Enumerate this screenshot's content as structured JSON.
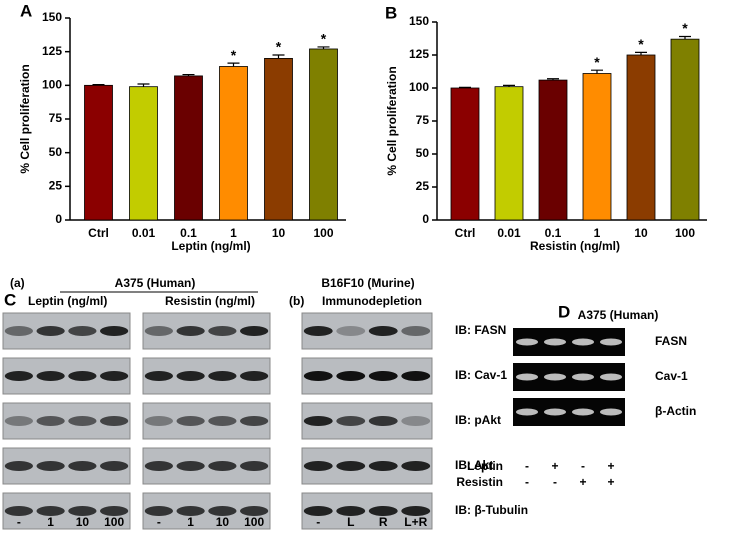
{
  "chart_data": [
    {
      "type": "bar",
      "panel_label": "A",
      "categories": [
        "Ctrl",
        "0.01",
        "0.1",
        "1",
        "10",
        "100"
      ],
      "values": [
        100,
        99,
        107,
        114,
        120,
        127
      ],
      "errors": [
        0.5,
        2,
        1,
        2.5,
        2.5,
        1.5
      ],
      "colors": [
        "#8b0000",
        "#c2cc00",
        "#6a0000",
        "#ff8c00",
        "#8b3c00",
        "#7f8000"
      ],
      "ylim": [
        0,
        150
      ],
      "yticks": [
        0,
        25,
        50,
        75,
        100,
        125,
        150
      ],
      "y_label": "% Cell proliferation",
      "x_label": "Leptin (ng/ml)",
      "annotations": [
        {
          "category": "1",
          "label": "*"
        },
        {
          "category": "10",
          "label": "*"
        },
        {
          "category": "100",
          "label": "*"
        }
      ]
    },
    {
      "type": "bar",
      "panel_label": "B",
      "categories": [
        "Ctrl",
        "0.01",
        "0.1",
        "1",
        "10",
        "100"
      ],
      "values": [
        100,
        101,
        106,
        111,
        125,
        137
      ],
      "errors": [
        0.5,
        1,
        1,
        2.5,
        2,
        2
      ],
      "colors": [
        "#8b0000",
        "#c2cc00",
        "#6a0000",
        "#ff8c00",
        "#8b3c00",
        "#7f8000"
      ],
      "ylim": [
        0,
        150
      ],
      "yticks": [
        0,
        25,
        50,
        75,
        100,
        125,
        150
      ],
      "y_label": "% Cell proliferation",
      "x_label": "Resistin (ng/ml)",
      "annotations": [
        {
          "category": "1",
          "label": "*"
        },
        {
          "category": "10",
          "label": "*"
        },
        {
          "category": "100",
          "label": "*"
        }
      ]
    }
  ],
  "panel_c": {
    "label": "C",
    "group_a": "(a)",
    "cell_line_a": "A375 (Human)",
    "leptin_header": "Leptin (ng/ml)",
    "resistin_header": "Resistin (ng/ml)",
    "group_b": "(b)",
    "cell_line_b": "B16F10 (Murine)",
    "immuno_header": "Immunodepletion",
    "blot_labels": [
      "IB: FASN",
      "IB: Cav-1",
      "IB: pAkt",
      "IB: Akt",
      "IB: β-Tubulin"
    ],
    "lane_labels": [
      "-",
      "1",
      "10",
      "100",
      "-",
      "1",
      "10",
      "100",
      "-",
      "L",
      "R",
      "L+R"
    ]
  },
  "panel_d": {
    "label": "D",
    "cell_line": "A375 (Human)",
    "gel_labels": [
      "FASN",
      "Cav-1",
      "β-Actin"
    ],
    "treatments": [
      {
        "name": "Leptin",
        "signs": [
          "-",
          "+",
          "-",
          "+"
        ]
      },
      {
        "name": "Resistin",
        "signs": [
          "-",
          "-",
          "+",
          "+"
        ]
      }
    ]
  }
}
